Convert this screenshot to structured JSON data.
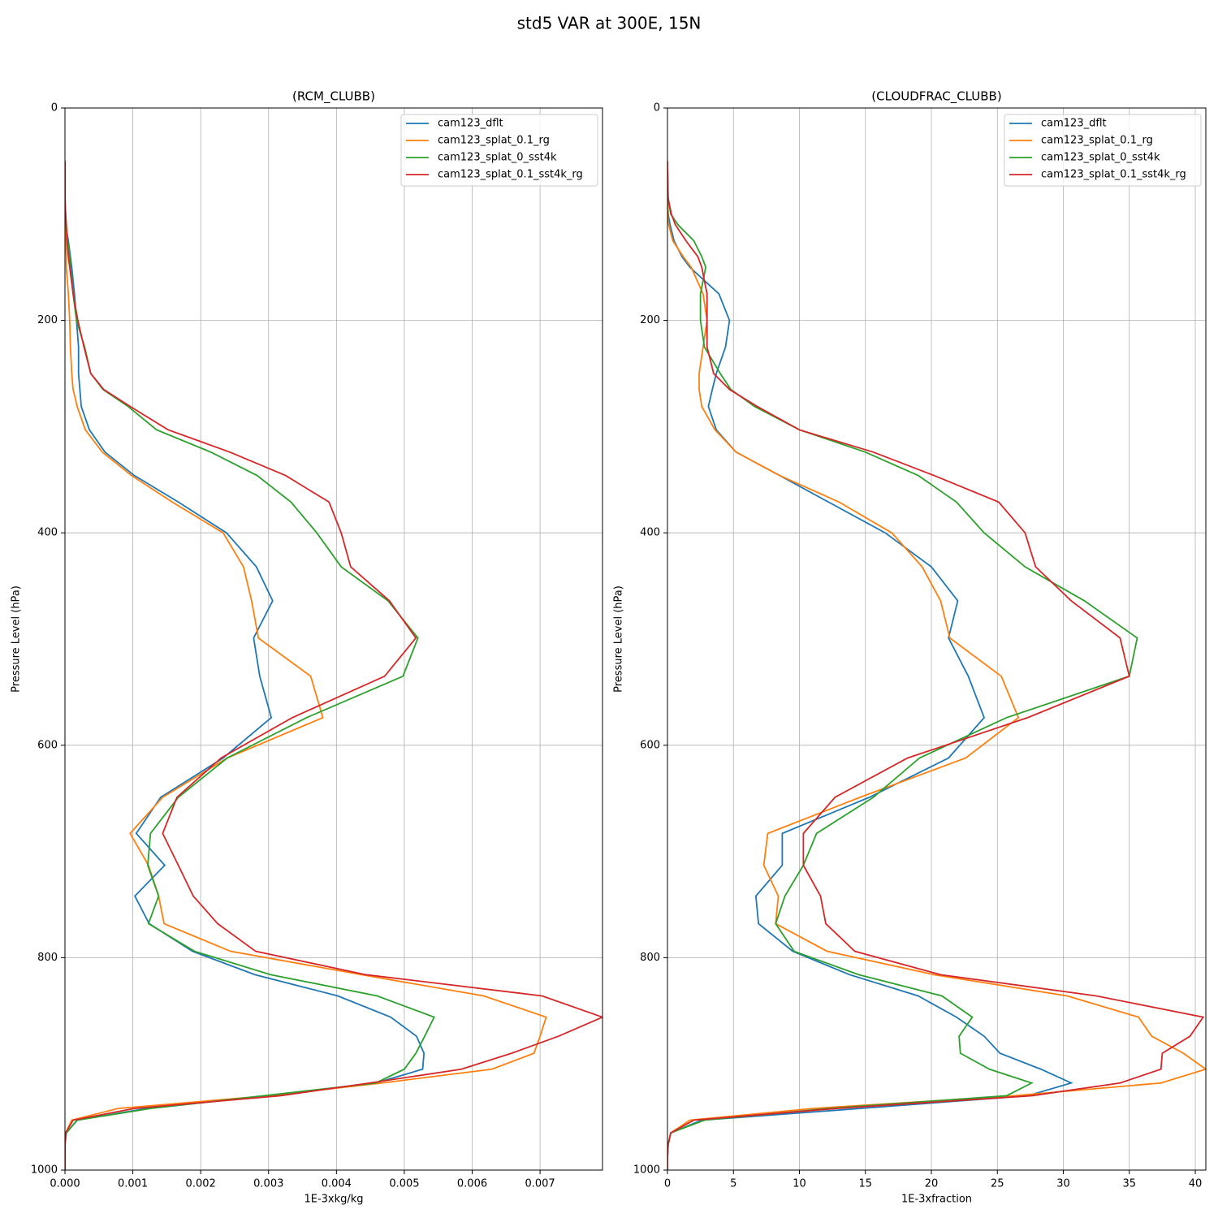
{
  "title": "std5 VAR at 300E, 15N",
  "chart_data": [
    {
      "type": "line",
      "title": "(RCM_CLUBB)",
      "x_label": "1E-3xkg/kg",
      "y_label": "Pressure Level (hPa)",
      "y": [
        50,
        85,
        100,
        110,
        125,
        140,
        150,
        175,
        200,
        225,
        250,
        265,
        281,
        303,
        324,
        346,
        371,
        400,
        432,
        464,
        499,
        535,
        574,
        612,
        649,
        683,
        713,
        742,
        768,
        794,
        816,
        836,
        856,
        874,
        890,
        905,
        918,
        930,
        942,
        953,
        965,
        976,
        988,
        1000
      ],
      "xlim": [
        0,
        0.00792
      ],
      "ylim": [
        0,
        1000
      ],
      "y_inverted": true,
      "xticks": [
        {
          "value": 0,
          "label": "0.000"
        },
        0.001,
        0.002,
        0.003,
        0.004,
        0.005,
        0.006,
        0.007
      ],
      "yticks": [
        0,
        200,
        400,
        600,
        800,
        1000
      ],
      "grid": true,
      "legend": "upper right",
      "series": [
        {
          "name": "cam123_dflt",
          "color": "#1f77b4",
          "values": [
            0,
            0,
            0,
            1e-05,
            5e-05,
            8e-05,
            0.0001,
            0.00014,
            0.00017,
            0.0002,
            0.0002,
            0.00022,
            0.00024,
            0.00036,
            0.00059,
            0.00102,
            0.00167,
            0.00238,
            0.00282,
            0.00306,
            0.00278,
            0.00287,
            0.00304,
            0.00233,
            0.00141,
            0.00105,
            0.00147,
            0.00103,
            0.00124,
            0.00188,
            0.0028,
            0.00402,
            0.0048,
            0.00518,
            0.00529,
            0.00527,
            0.00458,
            0.003,
            0.0012,
            0.00018,
            2e-05,
            0,
            0,
            0
          ]
        },
        {
          "name": "cam123_splat_0.1_rg",
          "color": "#ff7f0e",
          "values": [
            0,
            0,
            0,
            0,
            1e-05,
            2e-05,
            2e-05,
            5e-05,
            7e-05,
            8e-05,
            0.0001,
            0.00012,
            0.00018,
            0.0003,
            0.00055,
            0.00098,
            0.00158,
            0.00233,
            0.00263,
            0.00275,
            0.00285,
            0.00362,
            0.0038,
            0.00239,
            0.00144,
            0.00096,
            0.00123,
            0.00138,
            0.00146,
            0.00244,
            0.00437,
            0.00617,
            0.00709,
            0.007,
            0.00691,
            0.00629,
            0.00467,
            0.003,
            0.00078,
            0.0001,
            1e-05,
            0,
            0,
            0
          ]
        },
        {
          "name": "cam123_splat_0_sst4k",
          "color": "#2ca02c",
          "values": [
            0,
            0,
            1e-05,
            2e-05,
            4e-05,
            7e-05,
            8e-05,
            0.00012,
            0.00017,
            0.00029,
            0.00038,
            0.00056,
            0.00093,
            0.00135,
            0.00215,
            0.00283,
            0.00333,
            0.00371,
            0.00407,
            0.00476,
            0.0052,
            0.00498,
            0.00356,
            0.00239,
            0.00167,
            0.00126,
            0.00122,
            0.00138,
            0.00123,
            0.00191,
            0.00303,
            0.0046,
            0.00544,
            0.0053,
            0.00517,
            0.005,
            0.00458,
            0.00293,
            0.00126,
            0.00018,
            2e-05,
            0,
            0,
            0
          ]
        },
        {
          "name": "cam123_splat_0.1_sst4k_rg",
          "color": "#d62728",
          "values": [
            0,
            0,
            1e-05,
            2e-05,
            3e-05,
            5e-05,
            7e-05,
            0.00012,
            0.00019,
            0.00028,
            0.00038,
            0.00057,
            0.00096,
            0.00152,
            0.00243,
            0.00325,
            0.00389,
            0.00407,
            0.00421,
            0.00478,
            0.00517,
            0.00471,
            0.00335,
            0.0023,
            0.00165,
            0.00144,
            0.00167,
            0.00189,
            0.00225,
            0.00281,
            0.00443,
            0.00703,
            0.00792,
            0.00727,
            0.00658,
            0.00584,
            0.00449,
            0.00317,
            0.00102,
            0.00012,
            1e-05,
            0,
            0,
            0
          ]
        }
      ]
    },
    {
      "type": "line",
      "title": "(CLOUDFRAC_CLUBB)",
      "x_label": "1E-3xfraction",
      "y_label": "Pressure Level (hPa)",
      "y": [
        50,
        85,
        100,
        110,
        125,
        140,
        150,
        175,
        200,
        225,
        250,
        265,
        281,
        303,
        324,
        346,
        371,
        400,
        432,
        464,
        499,
        535,
        574,
        612,
        649,
        683,
        713,
        742,
        768,
        794,
        816,
        836,
        856,
        874,
        890,
        905,
        918,
        930,
        942,
        953,
        965,
        976,
        988,
        1000
      ],
      "xlim": [
        0,
        40.8
      ],
      "ylim": [
        0,
        1000
      ],
      "y_inverted": true,
      "xticks": [
        0,
        5,
        10,
        15,
        20,
        25,
        30,
        35,
        40
      ],
      "yticks": [
        0,
        200,
        400,
        600,
        800,
        1000
      ],
      "grid": true,
      "legend": "upper right",
      "series": [
        {
          "name": "cam123_dflt",
          "color": "#1f77b4",
          "values": [
            0,
            0,
            0.05,
            0.2,
            0.5,
            1.1,
            1.7,
            3.9,
            4.7,
            4.4,
            3.7,
            3.4,
            3.1,
            3.7,
            5.2,
            8.5,
            12.2,
            16.5,
            20,
            22,
            21.3,
            22.8,
            24,
            21.3,
            15.3,
            8.7,
            8.7,
            6.7,
            6.9,
            9.5,
            13.8,
            19,
            21.9,
            24,
            25.2,
            28.3,
            30.6,
            27.3,
            14.6,
            2.6,
            0.25,
            0.05,
            0,
            0
          ]
        },
        {
          "name": "cam123_splat_0.1_rg",
          "color": "#ff7f0e",
          "values": [
            0,
            0,
            0,
            0.1,
            0.4,
            1.2,
            1.8,
            2.7,
            3,
            2.7,
            2.4,
            2.4,
            2.6,
            3.6,
            5.2,
            8.5,
            13,
            17,
            19.3,
            20.7,
            21.4,
            25.3,
            26.6,
            22.6,
            14.6,
            7.6,
            7.3,
            8.4,
            8.2,
            12.1,
            20.2,
            30.3,
            35.7,
            36.7,
            39.1,
            40.8,
            37.4,
            26.3,
            11,
            1.7,
            0.25,
            0.05,
            0,
            0
          ]
        },
        {
          "name": "cam123_splat_0_sst4k",
          "color": "#2ca02c",
          "values": [
            0,
            0.05,
            0.25,
            0.8,
            2,
            2.6,
            2.9,
            2.5,
            2.5,
            2.8,
            4,
            4.8,
            6.6,
            10,
            15,
            19,
            21.9,
            24,
            27.1,
            31.6,
            35.6,
            35,
            25.7,
            19.1,
            15.6,
            11.3,
            10.3,
            8.9,
            8.2,
            9.6,
            14.5,
            20.8,
            23.1,
            22.1,
            22.2,
            24.4,
            27.6,
            25.7,
            12.2,
            2.8,
            0.25,
            0.05,
            0,
            0
          ]
        },
        {
          "name": "cam123_splat_0.1_sst4k_rg",
          "color": "#d62728",
          "values": [
            0,
            0.05,
            0.3,
            0.6,
            1.4,
            2.3,
            2.6,
            3,
            3,
            3,
            3.5,
            4.7,
            6.8,
            10,
            15.6,
            20.2,
            25.1,
            27.1,
            27.9,
            30.6,
            34.3,
            35,
            27.3,
            18.2,
            12.7,
            10.3,
            10.3,
            11.6,
            12,
            14.2,
            20.7,
            32.5,
            40.6,
            39.6,
            37.5,
            37.4,
            34.3,
            27.6,
            12.8,
            2,
            0.25,
            0.05,
            0,
            0
          ]
        }
      ]
    }
  ]
}
